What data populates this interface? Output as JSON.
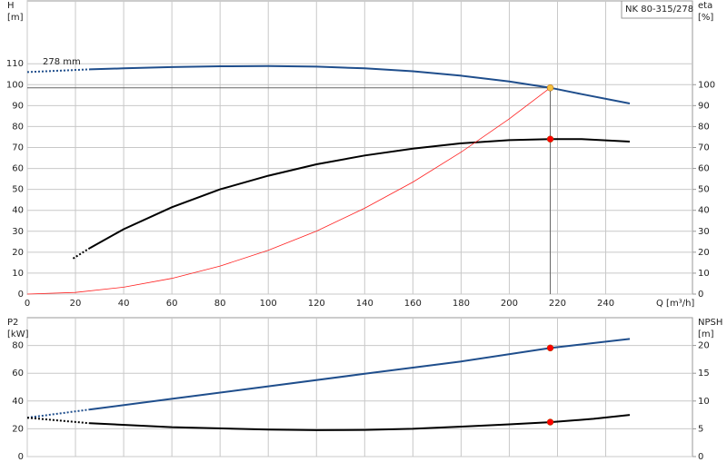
{
  "chart_data": [
    {
      "type": "line",
      "label_box": "NK 80-315/278",
      "curve_label": "278 mm",
      "xlabel": "Q [m³/h]",
      "ylabel": [
        "H",
        "[m]"
      ],
      "y2label": [
        "eta",
        "[%]"
      ],
      "xlim": [
        0,
        276
      ],
      "xticks": [
        0,
        20,
        40,
        60,
        80,
        100,
        120,
        140,
        160,
        180,
        200,
        220,
        240
      ],
      "xtick_labels": true,
      "ylim": [
        0,
        140
      ],
      "yticks": [
        0,
        10,
        20,
        30,
        40,
        50,
        60,
        70,
        80,
        90,
        100,
        110
      ],
      "y2lim": [
        0,
        140
      ],
      "y2ticks": [
        0,
        10,
        20,
        30,
        40,
        50,
        60,
        70,
        80,
        90,
        100
      ],
      "grid": true,
      "series": [
        {
          "color": "#1f4e8c",
          "width": 2,
          "dash": true,
          "x": [
            0,
            26
          ],
          "values": [
            106,
            107.3
          ]
        },
        {
          "color": "#1f4e8c",
          "width": 2,
          "dash": false,
          "x": [
            26,
            40,
            60,
            80,
            100,
            120,
            140,
            160,
            180,
            200,
            217,
            230,
            250
          ],
          "values": [
            107.3,
            107.8,
            108.4,
            108.8,
            108.9,
            108.6,
            107.8,
            106.4,
            104.3,
            101.5,
            98.5,
            95.5,
            91
          ]
        },
        {
          "color": "#000000",
          "width": 2,
          "dash": true,
          "axis": "y2",
          "x": [
            19,
            26
          ],
          "values": [
            17,
            22
          ]
        },
        {
          "color": "#000000",
          "width": 2,
          "dash": false,
          "axis": "y2",
          "x": [
            26,
            40,
            60,
            80,
            100,
            120,
            140,
            160,
            180,
            200,
            217,
            230,
            250
          ],
          "values": [
            22,
            31,
            41.5,
            50,
            56.5,
            62,
            66.2,
            69.5,
            72,
            73.5,
            74,
            74,
            72.8
          ]
        },
        {
          "color": "#ff2020",
          "width": 0.8,
          "dash": false,
          "x": [
            0,
            20,
            40,
            60,
            80,
            100,
            120,
            140,
            160,
            180,
            200,
            217
          ],
          "values": [
            0,
            0.8,
            3.3,
            7.5,
            13.4,
            20.9,
            30.1,
            41,
            53.5,
            67.8,
            83.7,
            98.5
          ]
        }
      ],
      "points": [
        {
          "x": 217,
          "value": 98.5,
          "color": "#f5c242"
        },
        {
          "x": 217,
          "value": 74,
          "axis": "y2",
          "color": "#ff0000"
        }
      ]
    },
    {
      "type": "line",
      "ylabel": [
        "P2",
        "[kW]"
      ],
      "y2label": [
        "NPSH",
        "[m]"
      ],
      "xlim": [
        0,
        276
      ],
      "xticks": [
        0,
        20,
        40,
        60,
        80,
        100,
        120,
        140,
        160,
        180,
        200,
        220,
        240
      ],
      "xtick_labels": false,
      "ylim": [
        0,
        100
      ],
      "yticks": [
        0,
        20,
        40,
        60,
        80
      ],
      "y2lim": [
        0,
        25
      ],
      "y2ticks": [
        0,
        5,
        10,
        15,
        20
      ],
      "grid": true,
      "series": [
        {
          "color": "#1f4e8c",
          "width": 2,
          "dash": true,
          "x": [
            0,
            26
          ],
          "values": [
            28,
            33.9
          ]
        },
        {
          "color": "#1f4e8c",
          "width": 2,
          "dash": false,
          "x": [
            26,
            60,
            100,
            140,
            180,
            217,
            250
          ],
          "values": [
            33.9,
            41.6,
            50.6,
            59.6,
            68.5,
            78.2,
            84.7
          ]
        },
        {
          "color": "#000000",
          "width": 2,
          "dash": true,
          "axis": "y2",
          "x": [
            0,
            26
          ],
          "values": [
            7,
            6
          ]
        },
        {
          "color": "#000000",
          "width": 2,
          "dash": false,
          "axis": "y2",
          "x": [
            26,
            60,
            100,
            120,
            140,
            160,
            180,
            200,
            217,
            235,
            250
          ],
          "values": [
            6,
            5.3,
            4.85,
            4.75,
            4.8,
            5,
            5.4,
            5.8,
            6.2,
            6.8,
            7.5
          ]
        }
      ],
      "points": [
        {
          "x": 217,
          "value": 78.2,
          "color": "#ff0000"
        },
        {
          "x": 217,
          "value": 6.2,
          "axis": "y2",
          "color": "#ff0000"
        }
      ]
    }
  ]
}
